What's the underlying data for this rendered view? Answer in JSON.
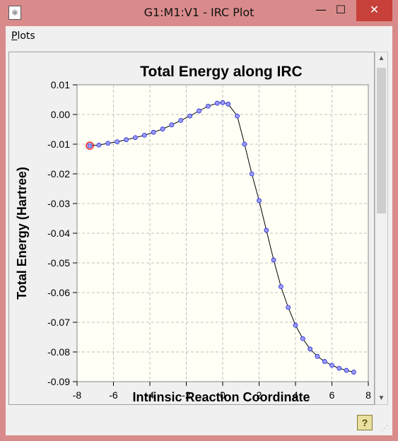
{
  "window": {
    "title": "G1:M1:V1 - IRC Plot",
    "app_icon": "molecule-app-icon",
    "min_glyph": "—",
    "max_glyph": "☐",
    "close_glyph": "✕"
  },
  "menu": {
    "plots_label_first": "P",
    "plots_label_rest": "lots"
  },
  "scrollbar": {
    "up_glyph": "▲",
    "down_glyph": "▼"
  },
  "status": {
    "help_glyph": "?",
    "grip_glyph": "⋰"
  },
  "colors": {
    "titlebar": "#d98b8b",
    "close_button": "#c7403a",
    "plot_bg": "#fffff5",
    "point_fill": "#9a9aff",
    "point_stroke": "#2a2ad0",
    "highlight": "#e02020"
  },
  "chart_data": {
    "type": "line",
    "title": "Total Energy along IRC",
    "xlabel": "Intrinsic Reaction Coordinate",
    "ylabel": "Total Energy (Hartree)",
    "xlim": [
      -8,
      8
    ],
    "ylim": [
      -0.09,
      0.01
    ],
    "x_ticks": [
      -8,
      -6,
      -4,
      -2,
      0,
      2,
      4,
      6,
      8
    ],
    "y_ticks": [
      "0.01",
      "0.00",
      "-0.01",
      "-0.02",
      "-0.03",
      "-0.04",
      "-0.05",
      "-0.06",
      "-0.07",
      "-0.08",
      "-0.09"
    ],
    "grid": true,
    "highlighted_point_index": 0,
    "x": [
      -7.3,
      -6.8,
      -6.3,
      -5.8,
      -5.3,
      -4.8,
      -4.3,
      -3.8,
      -3.3,
      -2.8,
      -2.3,
      -1.8,
      -1.3,
      -0.8,
      -0.3,
      0.0,
      0.3,
      0.8,
      1.2,
      1.6,
      2.0,
      2.4,
      2.8,
      3.2,
      3.6,
      4.0,
      4.4,
      4.8,
      5.2,
      5.6,
      6.0,
      6.4,
      6.8,
      7.2
    ],
    "y": [
      -0.0105,
      -0.0103,
      -0.0097,
      -0.0092,
      -0.0085,
      -0.0078,
      -0.007,
      -0.006,
      -0.0049,
      -0.0035,
      -0.002,
      -0.0005,
      0.0012,
      0.0028,
      0.0038,
      0.004,
      0.0035,
      -0.0005,
      -0.01,
      -0.02,
      -0.029,
      -0.039,
      -0.049,
      -0.058,
      -0.065,
      -0.071,
      -0.0755,
      -0.079,
      -0.0815,
      -0.0832,
      -0.0845,
      -0.0855,
      -0.0862,
      -0.0868
    ]
  }
}
